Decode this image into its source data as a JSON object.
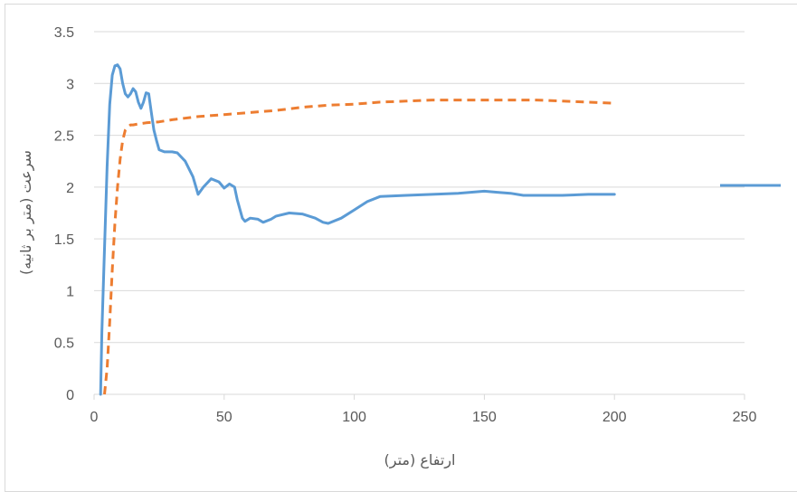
{
  "chart_data": {
    "type": "line",
    "title": "",
    "xlabel": "ارتفاع (متر)",
    "ylabel": "سرعت (متر بر ثانیه)",
    "xlim": [
      0,
      250
    ],
    "ylim": [
      0,
      3.5
    ],
    "x_ticks": [
      "0",
      "50",
      "100",
      "150",
      "200",
      "250"
    ],
    "y_ticks": [
      "0",
      "0.5",
      "1",
      "1.5",
      "2",
      "2.5",
      "3",
      "3.5"
    ],
    "grid": true,
    "legend_position": "right",
    "series": [
      {
        "color": "#5b9bd5",
        "dash": "solid",
        "x": [
          2.5,
          3,
          4,
          5,
          6,
          7,
          8,
          9,
          10,
          11,
          12,
          13,
          14,
          15,
          16,
          17,
          18,
          19,
          20,
          21,
          22,
          23,
          24,
          25,
          27,
          30,
          32,
          35,
          38,
          40,
          42,
          45,
          48,
          50,
          52,
          54,
          55,
          57,
          58,
          60,
          63,
          65,
          68,
          70,
          75,
          80,
          85,
          88,
          90,
          95,
          100,
          105,
          110,
          120,
          130,
          140,
          150,
          155,
          160,
          165,
          170,
          180,
          190,
          200
        ],
        "values": [
          0.0,
          0.6,
          1.4,
          2.2,
          2.8,
          3.08,
          3.17,
          3.18,
          3.14,
          3.0,
          2.9,
          2.87,
          2.9,
          2.95,
          2.92,
          2.82,
          2.76,
          2.82,
          2.91,
          2.9,
          2.72,
          2.55,
          2.45,
          2.36,
          2.34,
          2.34,
          2.33,
          2.25,
          2.1,
          1.93,
          2.0,
          2.08,
          2.05,
          1.99,
          2.03,
          2.0,
          1.88,
          1.7,
          1.67,
          1.7,
          1.69,
          1.66,
          1.69,
          1.72,
          1.75,
          1.74,
          1.7,
          1.66,
          1.65,
          1.7,
          1.78,
          1.86,
          1.91,
          1.92,
          1.93,
          1.94,
          1.96,
          1.95,
          1.94,
          1.92,
          1.92,
          1.92,
          1.93,
          1.93
        ]
      },
      {
        "color": "#ed7d31",
        "dash": "dashed",
        "x": [
          4,
          5,
          6,
          7,
          8,
          9,
          10,
          11,
          12,
          13,
          14,
          15,
          17,
          20,
          25,
          30,
          40,
          50,
          60,
          70,
          80,
          90,
          100,
          110,
          120,
          130,
          140,
          150,
          160,
          170,
          180,
          190,
          200
        ],
        "values": [
          0.0,
          0.25,
          0.7,
          1.2,
          1.65,
          2.0,
          2.27,
          2.45,
          2.55,
          2.58,
          2.6,
          2.6,
          2.61,
          2.62,
          2.63,
          2.65,
          2.68,
          2.7,
          2.72,
          2.74,
          2.77,
          2.79,
          2.8,
          2.82,
          2.83,
          2.84,
          2.84,
          2.84,
          2.84,
          2.84,
          2.83,
          2.82,
          2.81
        ]
      }
    ]
  }
}
